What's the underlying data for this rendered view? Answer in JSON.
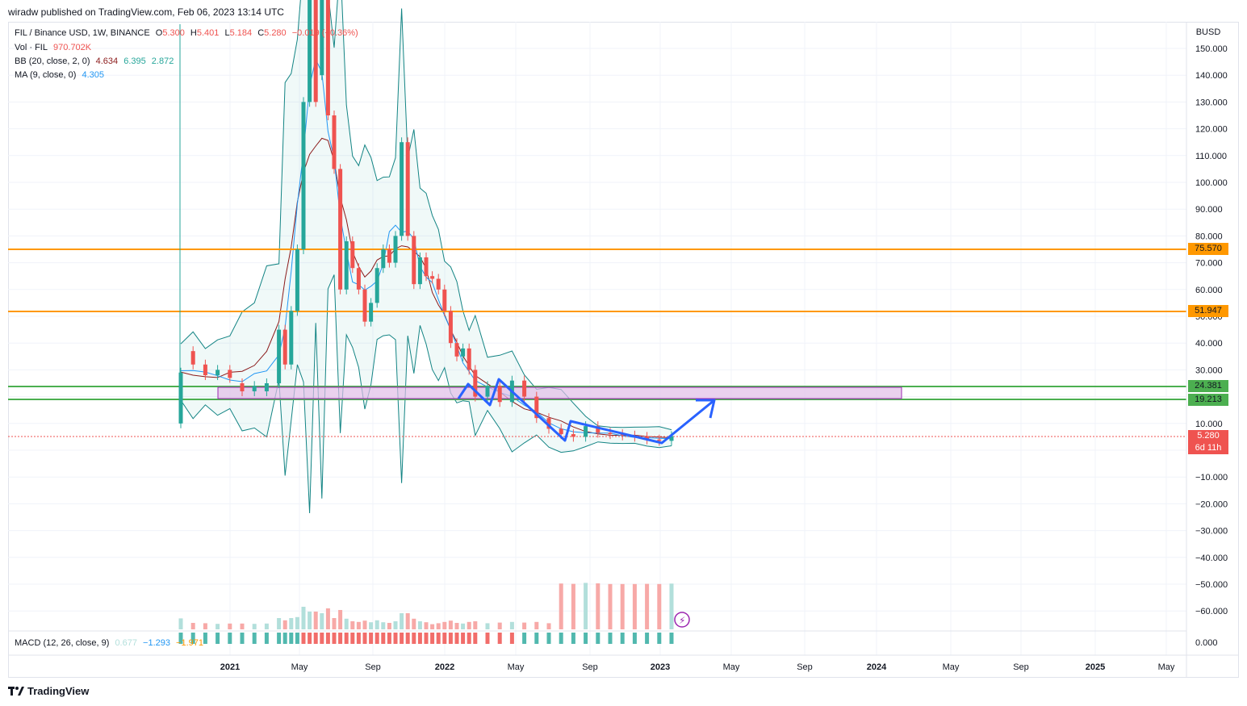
{
  "caption": "wiradw published on TradingView.com, Feb 06, 2023 13:14 UTC",
  "footer_brand": "TradingView",
  "legend": {
    "symbol": "FIL / Binance USD, 1W, BINANCE",
    "open_label": "O",
    "open": "5.300",
    "high_label": "H",
    "high": "5.401",
    "low_label": "L",
    "low": "5.184",
    "close_label": "C",
    "close": "5.280",
    "change": "−0.019 (−0.36%)",
    "vol_label": "Vol · FIL",
    "vol": "970.702K",
    "bb_label": "BB (20, close, 2, 0)",
    "bb_basis": "4.634",
    "bb_upper": "6.395",
    "bb_lower": "2.872",
    "ma_label": "MA (9, close, 0)",
    "ma": "4.305",
    "macd_label": "MACD (12, 26, close, 9)",
    "macd_hist": "0.677",
    "macd_line": "−1.293",
    "macd_signal": "−1.971"
  },
  "price_tags": {
    "currency": "BUSD",
    "level1": "75.570",
    "level2": "51.947",
    "level3": "24.381",
    "level4": "19.213",
    "last": "5.280",
    "countdown": "6d 11h"
  },
  "colors": {
    "up": "#26a69a",
    "down": "#ef5350",
    "orange": "#ff9800",
    "green": "#4caf50",
    "bb": "#138484",
    "ma": "#2196f3",
    "basis": "#8b1a1a",
    "zone": "#e1bee7",
    "arrow": "#2962ff"
  },
  "chart_data": {
    "type": "candlestick",
    "y_axis_ticks": [
      "150.000",
      "140.000",
      "130.000",
      "120.000",
      "110.000",
      "100.000",
      "90.000",
      "80.000",
      "70.000",
      "60.000",
      "50.000",
      "40.000",
      "30.000",
      "20.000",
      "10.000",
      "0.000",
      "−10.000",
      "−20.000",
      "−30.000",
      "−40.000",
      "−50.000",
      "−60.000"
    ],
    "macd_axis_tick": "0.000",
    "x_axis_ticks": [
      {
        "label": "2021",
        "bold": true
      },
      {
        "label": "May",
        "bold": false
      },
      {
        "label": "Sep",
        "bold": false
      },
      {
        "label": "2022",
        "bold": true
      },
      {
        "label": "May",
        "bold": false
      },
      {
        "label": "Sep",
        "bold": false
      },
      {
        "label": "2023",
        "bold": true
      },
      {
        "label": "May",
        "bold": false
      },
      {
        "label": "Sep",
        "bold": false
      },
      {
        "label": "2024",
        "bold": true
      },
      {
        "label": "May",
        "bold": false
      },
      {
        "label": "Sep",
        "bold": false
      },
      {
        "label": "2025",
        "bold": true
      },
      {
        "label": "May",
        "bold": false
      }
    ],
    "horizontal_levels": [
      {
        "value": 75.57,
        "color": "orange"
      },
      {
        "value": 51.947,
        "color": "orange"
      },
      {
        "value": 24.381,
        "color": "green"
      },
      {
        "value": 19.213,
        "color": "green"
      }
    ],
    "last_price": 5.28,
    "weekly_close_series": [
      {
        "week": 0,
        "o": 10,
        "c": 29
      },
      {
        "week": 2,
        "o": 37,
        "c": 32
      },
      {
        "week": 4,
        "o": 32,
        "c": 28
      },
      {
        "week": 6,
        "o": 28,
        "c": 30
      },
      {
        "week": 8,
        "o": 30,
        "c": 27
      },
      {
        "week": 10,
        "o": 25,
        "c": 22
      },
      {
        "week": 12,
        "o": 22,
        "c": 24
      },
      {
        "week": 14,
        "o": 22,
        "c": 25
      },
      {
        "week": 16,
        "o": 25,
        "c": 45
      },
      {
        "week": 17,
        "o": 45,
        "c": 32
      },
      {
        "week": 18,
        "o": 32,
        "c": 52
      },
      {
        "week": 19,
        "o": 52,
        "c": 75
      },
      {
        "week": 20,
        "o": 75,
        "c": 130
      },
      {
        "week": 21,
        "o": 130,
        "c": 170
      },
      {
        "week": 22,
        "o": 170,
        "c": 130
      },
      {
        "week": 23,
        "o": 140,
        "c": 175
      },
      {
        "week": 24,
        "o": 175,
        "c": 125
      },
      {
        "week": 25,
        "o": 125,
        "c": 105
      },
      {
        "week": 26,
        "o": 105,
        "c": 60
      },
      {
        "week": 27,
        "o": 60,
        "c": 78
      },
      {
        "week": 28,
        "o": 78,
        "c": 68
      },
      {
        "week": 29,
        "o": 68,
        "c": 60
      },
      {
        "week": 30,
        "o": 60,
        "c": 48
      },
      {
        "week": 31,
        "o": 48,
        "c": 55
      },
      {
        "week": 32,
        "o": 55,
        "c": 68
      },
      {
        "week": 33,
        "o": 68,
        "c": 75
      },
      {
        "week": 34,
        "o": 75,
        "c": 70
      },
      {
        "week": 35,
        "o": 70,
        "c": 80
      },
      {
        "week": 36,
        "o": 80,
        "c": 115
      },
      {
        "week": 37,
        "o": 115,
        "c": 80
      },
      {
        "week": 38,
        "o": 80,
        "c": 62
      },
      {
        "week": 39,
        "o": 62,
        "c": 72
      },
      {
        "week": 40,
        "o": 72,
        "c": 65
      },
      {
        "week": 41,
        "o": 65,
        "c": 64
      },
      {
        "week": 42,
        "o": 64,
        "c": 60
      },
      {
        "week": 43,
        "o": 60,
        "c": 52
      },
      {
        "week": 44,
        "o": 52,
        "c": 40
      },
      {
        "week": 45,
        "o": 40,
        "c": 35
      },
      {
        "week": 46,
        "o": 35,
        "c": 38
      },
      {
        "week": 47,
        "o": 38,
        "c": 30
      },
      {
        "week": 48,
        "o": 30,
        "c": 20
      },
      {
        "week": 50,
        "o": 20,
        "c": 24
      },
      {
        "week": 52,
        "o": 24,
        "c": 18
      },
      {
        "week": 54,
        "o": 18,
        "c": 26
      },
      {
        "week": 56,
        "o": 26,
        "c": 20
      },
      {
        "week": 58,
        "o": 20,
        "c": 12
      },
      {
        "week": 60,
        "o": 12,
        "c": 8
      },
      {
        "week": 62,
        "o": 8,
        "c": 6
      },
      {
        "week": 64,
        "o": 6,
        "c": 5
      },
      {
        "week": 66,
        "o": 5,
        "c": 9
      },
      {
        "week": 68,
        "o": 9,
        "c": 6.5
      },
      {
        "week": 70,
        "o": 6.5,
        "c": 6
      },
      {
        "week": 72,
        "o": 6,
        "c": 5.5
      },
      {
        "week": 74,
        "o": 5.5,
        "c": 5
      },
      {
        "week": 76,
        "o": 5,
        "c": 4
      },
      {
        "week": 78,
        "o": 4,
        "c": 3.5
      },
      {
        "week": 80,
        "o": 3.5,
        "c": 5.3
      }
    ]
  }
}
